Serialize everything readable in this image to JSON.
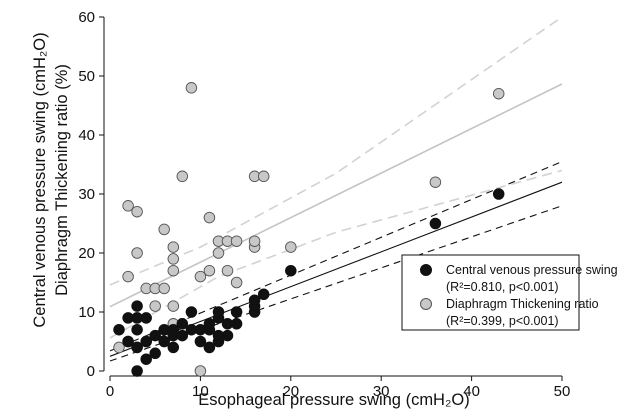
{
  "chart_data": {
    "type": "scatter",
    "title": "",
    "xlabel": "Esophageal pressure swing (cmH₂O)",
    "ylabel_line1": "Central venous pressure swing (cmH₂O)",
    "ylabel_line2": "Diaphragm Thickening ratio (%)",
    "xlim": [
      0,
      50
    ],
    "ylim": [
      0,
      60
    ],
    "xticks": [
      0,
      10,
      20,
      30,
      40,
      50
    ],
    "yticks": [
      0,
      10,
      20,
      30,
      40,
      50,
      60
    ],
    "grid": false,
    "legend_position": "bottom-right",
    "series": [
      {
        "name": "Central venous pressure swing",
        "stats": "(R²=0.810, p<0.001)",
        "marker_color": "#111111",
        "points": [
          [
            1,
            7
          ],
          [
            2,
            5
          ],
          [
            2,
            9
          ],
          [
            3,
            0
          ],
          [
            3,
            4
          ],
          [
            3,
            7
          ],
          [
            3,
            9
          ],
          [
            3,
            11
          ],
          [
            4,
            2
          ],
          [
            4,
            5
          ],
          [
            4,
            9
          ],
          [
            5,
            3
          ],
          [
            5,
            6
          ],
          [
            6,
            5
          ],
          [
            6,
            7
          ],
          [
            7,
            4
          ],
          [
            7,
            6
          ],
          [
            7,
            7
          ],
          [
            8,
            6
          ],
          [
            8,
            8
          ],
          [
            9,
            7
          ],
          [
            9,
            10
          ],
          [
            10,
            5
          ],
          [
            10,
            7
          ],
          [
            11,
            4
          ],
          [
            11,
            7
          ],
          [
            11,
            8
          ],
          [
            12,
            5
          ],
          [
            12,
            6
          ],
          [
            12,
            9
          ],
          [
            12,
            10
          ],
          [
            13,
            6
          ],
          [
            13,
            8
          ],
          [
            14,
            8
          ],
          [
            14,
            10
          ],
          [
            16,
            10
          ],
          [
            16,
            11
          ],
          [
            16,
            12
          ],
          [
            17,
            13
          ],
          [
            20,
            17
          ],
          [
            36,
            25
          ],
          [
            43,
            30
          ]
        ],
        "fit": {
          "intercept": 2.5,
          "slope": 0.59
        },
        "ci_lower": [
          [
            0,
            1.7
          ],
          [
            50,
            28.0
          ]
        ],
        "ci_upper": [
          [
            0,
            3.4
          ],
          [
            50,
            35.5
          ]
        ]
      },
      {
        "name": "Diaphragm Thickening ratio",
        "stats": "(R²=0.399, p<0.001)",
        "marker_color": "#c8c8c8",
        "points": [
          [
            1,
            4
          ],
          [
            2,
            5
          ],
          [
            2,
            16
          ],
          [
            2,
            28
          ],
          [
            3,
            4
          ],
          [
            3,
            9
          ],
          [
            3,
            20
          ],
          [
            3,
            27
          ],
          [
            4,
            5
          ],
          [
            4,
            14
          ],
          [
            5,
            11
          ],
          [
            5,
            14
          ],
          [
            6,
            14
          ],
          [
            6,
            24
          ],
          [
            7,
            8
          ],
          [
            7,
            11
          ],
          [
            7,
            17
          ],
          [
            7,
            19
          ],
          [
            7,
            21
          ],
          [
            8,
            8
          ],
          [
            8,
            33
          ],
          [
            9,
            48
          ],
          [
            10,
            0
          ],
          [
            10,
            16
          ],
          [
            11,
            4
          ],
          [
            11,
            17
          ],
          [
            11,
            26
          ],
          [
            12,
            20
          ],
          [
            12,
            22
          ],
          [
            13,
            17
          ],
          [
            13,
            22
          ],
          [
            14,
            15
          ],
          [
            14,
            22
          ],
          [
            16,
            21
          ],
          [
            16,
            22
          ],
          [
            16,
            33
          ],
          [
            17,
            33
          ],
          [
            20,
            21
          ],
          [
            36,
            32
          ],
          [
            43,
            47
          ]
        ],
        "fit": {
          "intercept": 10.9,
          "slope": 0.755
        },
        "ci_lower": [
          [
            0,
            5.6
          ],
          [
            12,
            16.0
          ],
          [
            25,
            23.5
          ],
          [
            50,
            34.0
          ]
        ],
        "ci_upper": [
          [
            0,
            14.6
          ],
          [
            10,
            21.0
          ],
          [
            25,
            33.5
          ],
          [
            50,
            60.0
          ]
        ]
      }
    ]
  }
}
